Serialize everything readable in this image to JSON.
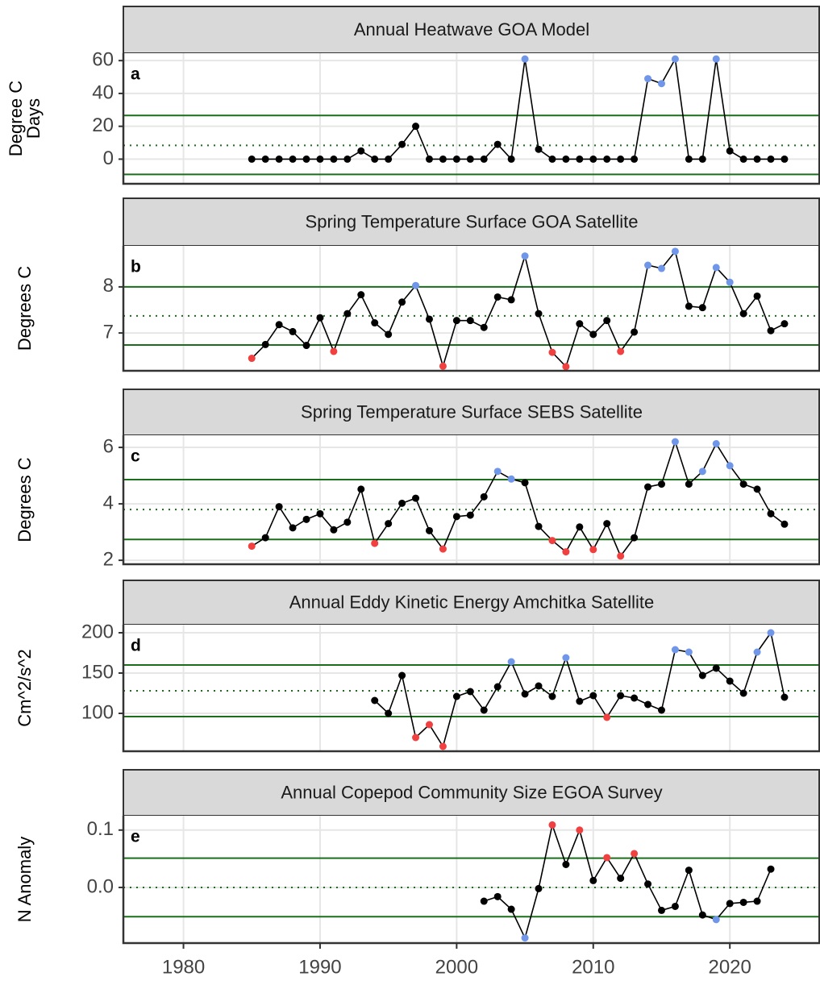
{
  "xaxis": {
    "xlim": [
      1975.6,
      2026.6
    ],
    "xticks": [
      1980,
      1990,
      2000,
      2010,
      2020
    ]
  },
  "chart_data": [
    {
      "type": "line",
      "title": "Annual Heatwave GOA Model",
      "annotation": "a",
      "ylabel": [
        "Degree C",
        "Days"
      ],
      "ylim": [
        -15,
        64.5
      ],
      "yticks": [
        0,
        20,
        40,
        60
      ],
      "grid": true,
      "reference_lines": {
        "upper": 26.6,
        "mean": 8.4,
        "lower": -9.3,
        "color": "#1b6e1b"
      },
      "line_color": "#000000",
      "x": [
        1985,
        1986,
        1987,
        1988,
        1989,
        1990,
        1991,
        1992,
        1993,
        1994,
        1995,
        1996,
        1997,
        1998,
        1999,
        2000,
        2001,
        2002,
        2003,
        2004,
        2005,
        2006,
        2007,
        2008,
        2009,
        2010,
        2011,
        2012,
        2013,
        2014,
        2015,
        2016,
        2017,
        2018,
        2019,
        2020,
        2021,
        2022,
        2023,
        2024
      ],
      "values": [
        0,
        0,
        0,
        0,
        0,
        0,
        0,
        0,
        5,
        0,
        0,
        9,
        20,
        0,
        0,
        0,
        0,
        0,
        9,
        0,
        61,
        6,
        0,
        0,
        0,
        0,
        0,
        0,
        0,
        49,
        46,
        61,
        0,
        0,
        61,
        5,
        0,
        0,
        0,
        0
      ],
      "point_colors": [
        "#000000",
        "#000000",
        "#000000",
        "#000000",
        "#000000",
        "#000000",
        "#000000",
        "#000000",
        "#000000",
        "#000000",
        "#000000",
        "#000000",
        "#000000",
        "#000000",
        "#000000",
        "#000000",
        "#000000",
        "#000000",
        "#000000",
        "#000000",
        "#6f96e8",
        "#000000",
        "#000000",
        "#000000",
        "#000000",
        "#000000",
        "#000000",
        "#000000",
        "#000000",
        "#6f96e8",
        "#6f96e8",
        "#6f96e8",
        "#000000",
        "#000000",
        "#6f96e8",
        "#000000",
        "#000000",
        "#000000",
        "#000000",
        "#000000"
      ]
    },
    {
      "type": "line",
      "title": "Spring Temperature Surface GOA Satellite",
      "annotation": "b",
      "ylabel": [
        "Degrees C"
      ],
      "ylim": [
        6.18,
        8.89
      ],
      "yticks": [
        7,
        8
      ],
      "grid": true,
      "reference_lines": {
        "upper": 8.0,
        "mean": 7.37,
        "lower": 6.74,
        "color": "#1b6e1b"
      },
      "line_color": "#000000",
      "x": [
        1985,
        1986,
        1987,
        1988,
        1989,
        1990,
        1991,
        1992,
        1993,
        1994,
        1995,
        1996,
        1997,
        1998,
        1999,
        2000,
        2001,
        2002,
        2003,
        2004,
        2005,
        2006,
        2007,
        2008,
        2009,
        2010,
        2011,
        2012,
        2013,
        2014,
        2015,
        2016,
        2017,
        2018,
        2019,
        2020,
        2021,
        2022,
        2023,
        2024
      ],
      "values": [
        6.45,
        6.75,
        7.18,
        7.03,
        6.73,
        7.33,
        6.6,
        7.42,
        7.83,
        7.22,
        6.97,
        7.67,
        8.03,
        7.3,
        6.28,
        7.27,
        7.27,
        7.12,
        7.78,
        7.72,
        8.67,
        7.42,
        6.58,
        6.27,
        7.2,
        6.97,
        7.27,
        6.6,
        7.02,
        8.47,
        8.4,
        8.77,
        7.58,
        7.55,
        8.42,
        8.1,
        7.42,
        7.8,
        7.05,
        7.2
      ],
      "point_colors": [
        "#f04040",
        "#000000",
        "#000000",
        "#000000",
        "#000000",
        "#000000",
        "#f04040",
        "#000000",
        "#000000",
        "#000000",
        "#000000",
        "#000000",
        "#6f96e8",
        "#000000",
        "#f04040",
        "#000000",
        "#000000",
        "#000000",
        "#000000",
        "#000000",
        "#6f96e8",
        "#000000",
        "#f04040",
        "#f04040",
        "#000000",
        "#000000",
        "#000000",
        "#f04040",
        "#000000",
        "#6f96e8",
        "#6f96e8",
        "#6f96e8",
        "#000000",
        "#000000",
        "#6f96e8",
        "#6f96e8",
        "#000000",
        "#000000",
        "#000000",
        "#000000"
      ]
    },
    {
      "type": "line",
      "title": "Spring Temperature Surface SEBS Satellite",
      "annotation": "c",
      "ylabel": [
        "Degrees C"
      ],
      "ylim": [
        1.86,
        6.43
      ],
      "yticks": [
        2,
        4,
        6
      ],
      "grid": true,
      "reference_lines": {
        "upper": 4.86,
        "mean": 3.8,
        "lower": 2.74,
        "color": "#1b6e1b"
      },
      "line_color": "#000000",
      "x": [
        1985,
        1986,
        1987,
        1988,
        1989,
        1990,
        1991,
        1992,
        1993,
        1994,
        1995,
        1996,
        1997,
        1998,
        1999,
        2000,
        2001,
        2002,
        2003,
        2004,
        2005,
        2006,
        2007,
        2008,
        2009,
        2010,
        2011,
        2012,
        2013,
        2014,
        2015,
        2016,
        2017,
        2018,
        2019,
        2020,
        2021,
        2022,
        2023,
        2024
      ],
      "values": [
        2.5,
        2.8,
        3.9,
        3.15,
        3.45,
        3.65,
        3.08,
        3.35,
        4.52,
        2.6,
        3.3,
        4.02,
        4.2,
        3.05,
        2.4,
        3.55,
        3.6,
        4.25,
        5.15,
        4.88,
        4.75,
        3.2,
        2.7,
        2.3,
        3.18,
        2.38,
        3.3,
        2.15,
        2.8,
        4.6,
        4.7,
        6.2,
        4.7,
        5.15,
        6.13,
        5.35,
        4.7,
        4.52,
        3.65,
        3.28
      ],
      "point_colors": [
        "#f04040",
        "#000000",
        "#000000",
        "#000000",
        "#000000",
        "#000000",
        "#000000",
        "#000000",
        "#000000",
        "#f04040",
        "#000000",
        "#000000",
        "#000000",
        "#000000",
        "#f04040",
        "#000000",
        "#000000",
        "#000000",
        "#6f96e8",
        "#6f96e8",
        "#000000",
        "#000000",
        "#f04040",
        "#f04040",
        "#000000",
        "#f04040",
        "#000000",
        "#f04040",
        "#000000",
        "#000000",
        "#000000",
        "#6f96e8",
        "#000000",
        "#6f96e8",
        "#6f96e8",
        "#6f96e8",
        "#000000",
        "#000000",
        "#000000",
        "#000000"
      ]
    },
    {
      "type": "line",
      "title": "Annual Eddy Kinetic Energy Amchitka Satellite",
      "annotation": "d",
      "ylabel": [
        "Cm^2/s^2"
      ],
      "ylim": [
        53,
        210
      ],
      "yticks": [
        100,
        150,
        200
      ],
      "grid": true,
      "reference_lines": {
        "upper": 160,
        "mean": 128,
        "lower": 96,
        "color": "#1b6e1b"
      },
      "line_color": "#000000",
      "x": [
        1994,
        1995,
        1996,
        1997,
        1998,
        1999,
        2000,
        2001,
        2002,
        2003,
        2004,
        2005,
        2006,
        2007,
        2008,
        2009,
        2010,
        2011,
        2012,
        2013,
        2014,
        2015,
        2016,
        2017,
        2018,
        2019,
        2020,
        2021,
        2022,
        2023,
        2024
      ],
      "values": [
        116,
        100,
        147,
        70,
        86,
        59,
        121,
        127,
        104,
        133,
        164,
        124,
        134,
        121,
        169,
        115,
        122,
        95,
        122,
        119,
        111,
        104,
        179,
        176,
        147,
        156,
        140,
        125,
        176,
        200,
        120
      ],
      "point_colors": [
        "#000000",
        "#000000",
        "#000000",
        "#f04040",
        "#f04040",
        "#f04040",
        "#000000",
        "#000000",
        "#000000",
        "#000000",
        "#6f96e8",
        "#000000",
        "#000000",
        "#000000",
        "#6f96e8",
        "#000000",
        "#000000",
        "#f04040",
        "#000000",
        "#000000",
        "#000000",
        "#000000",
        "#6f96e8",
        "#6f96e8",
        "#000000",
        "#000000",
        "#000000",
        "#000000",
        "#6f96e8",
        "#6f96e8",
        "#000000"
      ]
    },
    {
      "type": "line",
      "title": "Annual Copepod Community Size EGOA Survey",
      "annotation": "e",
      "ylabel": [
        "N Anomaly"
      ],
      "ylim": [
        -0.097,
        0.125
      ],
      "yticks": [
        {
          "value": 0,
          "label": "0.0"
        },
        0.1
      ],
      "grid": true,
      "reference_lines": {
        "upper": 0.051,
        "mean": 0.0,
        "lower": -0.051,
        "color": "#1b6e1b"
      },
      "line_color": "#000000",
      "x": [
        2002,
        2003,
        2004,
        2005,
        2006,
        2007,
        2008,
        2009,
        2010,
        2011,
        2012,
        2013,
        2014,
        2015,
        2016,
        2017,
        2018,
        2019,
        2020,
        2021,
        2022,
        2023
      ],
      "values": [
        -0.024,
        -0.016,
        -0.038,
        -0.088,
        -0.002,
        0.109,
        0.04,
        0.1,
        0.012,
        0.052,
        0.016,
        0.059,
        0.006,
        -0.04,
        -0.033,
        0.03,
        -0.048,
        -0.056,
        -0.028,
        -0.026,
        -0.024,
        0.032
      ],
      "point_colors": [
        "#000000",
        "#000000",
        "#000000",
        "#6f96e8",
        "#000000",
        "#f04040",
        "#000000",
        "#f04040",
        "#000000",
        "#f04040",
        "#000000",
        "#f04040",
        "#000000",
        "#000000",
        "#000000",
        "#000000",
        "#000000",
        "#6f96e8",
        "#000000",
        "#000000",
        "#000000",
        "#000000"
      ]
    }
  ]
}
